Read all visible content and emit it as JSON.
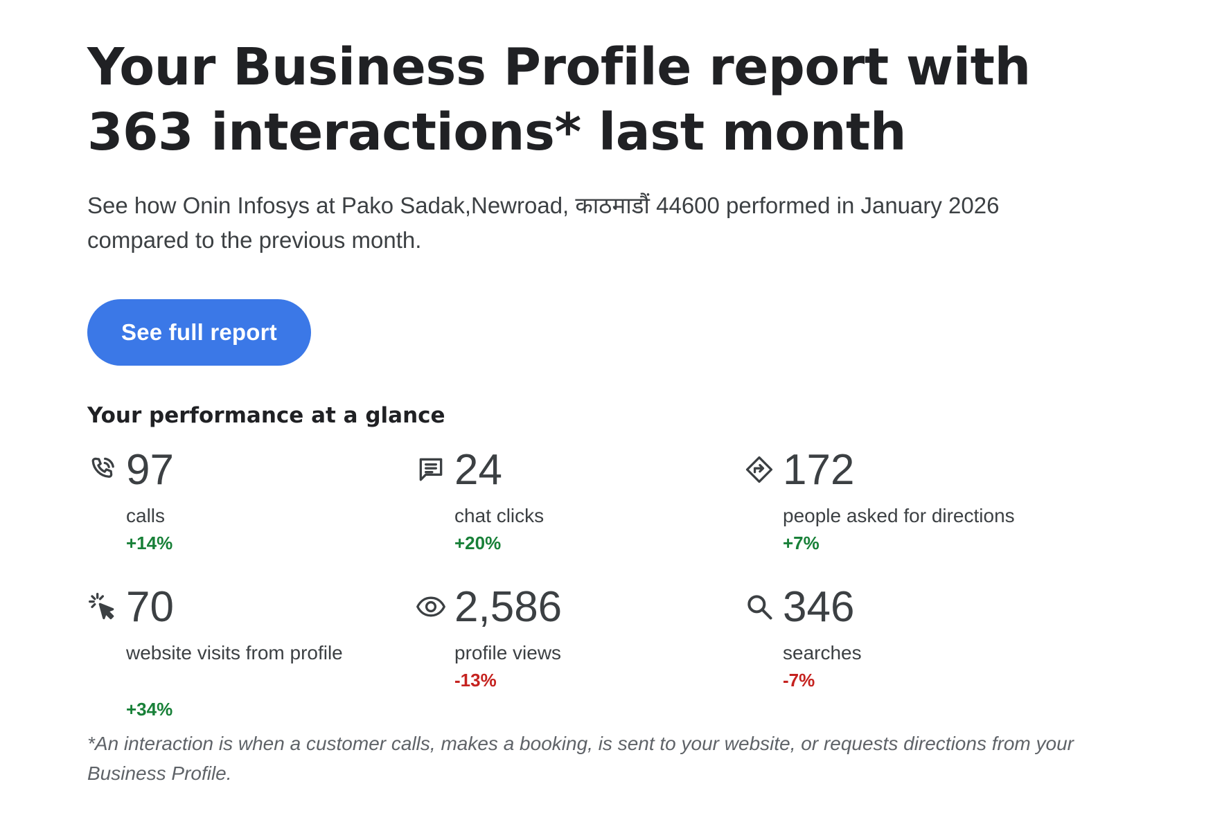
{
  "header": {
    "title": "Your Business Profile report with 363 interactions* last month",
    "subtitle": "See how Onin Infosys at Pako Sadak,Newroad, काठमाडौं 44600 performed in January 2026 compared to the previous month."
  },
  "cta": {
    "label": "See full report"
  },
  "glance": {
    "title": "Your performance at a glance",
    "metrics": [
      {
        "icon": "phone-icon",
        "value": "97",
        "label": "calls",
        "change": "+14%",
        "trend": "up"
      },
      {
        "icon": "chat-icon",
        "value": "24",
        "label": "chat clicks",
        "change": "+20%",
        "trend": "up"
      },
      {
        "icon": "directions-icon",
        "value": "172",
        "label": "people asked for directions",
        "change": "+7%",
        "trend": "up"
      },
      {
        "icon": "click-cursor-icon",
        "value": "70",
        "label": "website visits from profile",
        "change": "+34%",
        "trend": "up"
      },
      {
        "icon": "eye-icon",
        "value": "2,586",
        "label": "profile views",
        "change": "-13%",
        "trend": "down"
      },
      {
        "icon": "search-icon",
        "value": "346",
        "label": "searches",
        "change": "-7%",
        "trend": "down"
      }
    ]
  },
  "footnote": "*An interaction is when a customer calls, makes a booking, is sent to your website, or requests directions from your Business Profile.",
  "colors": {
    "accent": "#3b78e7",
    "positive": "#188038",
    "negative": "#c5221f",
    "text": "#202124",
    "muted": "#3c4043"
  }
}
